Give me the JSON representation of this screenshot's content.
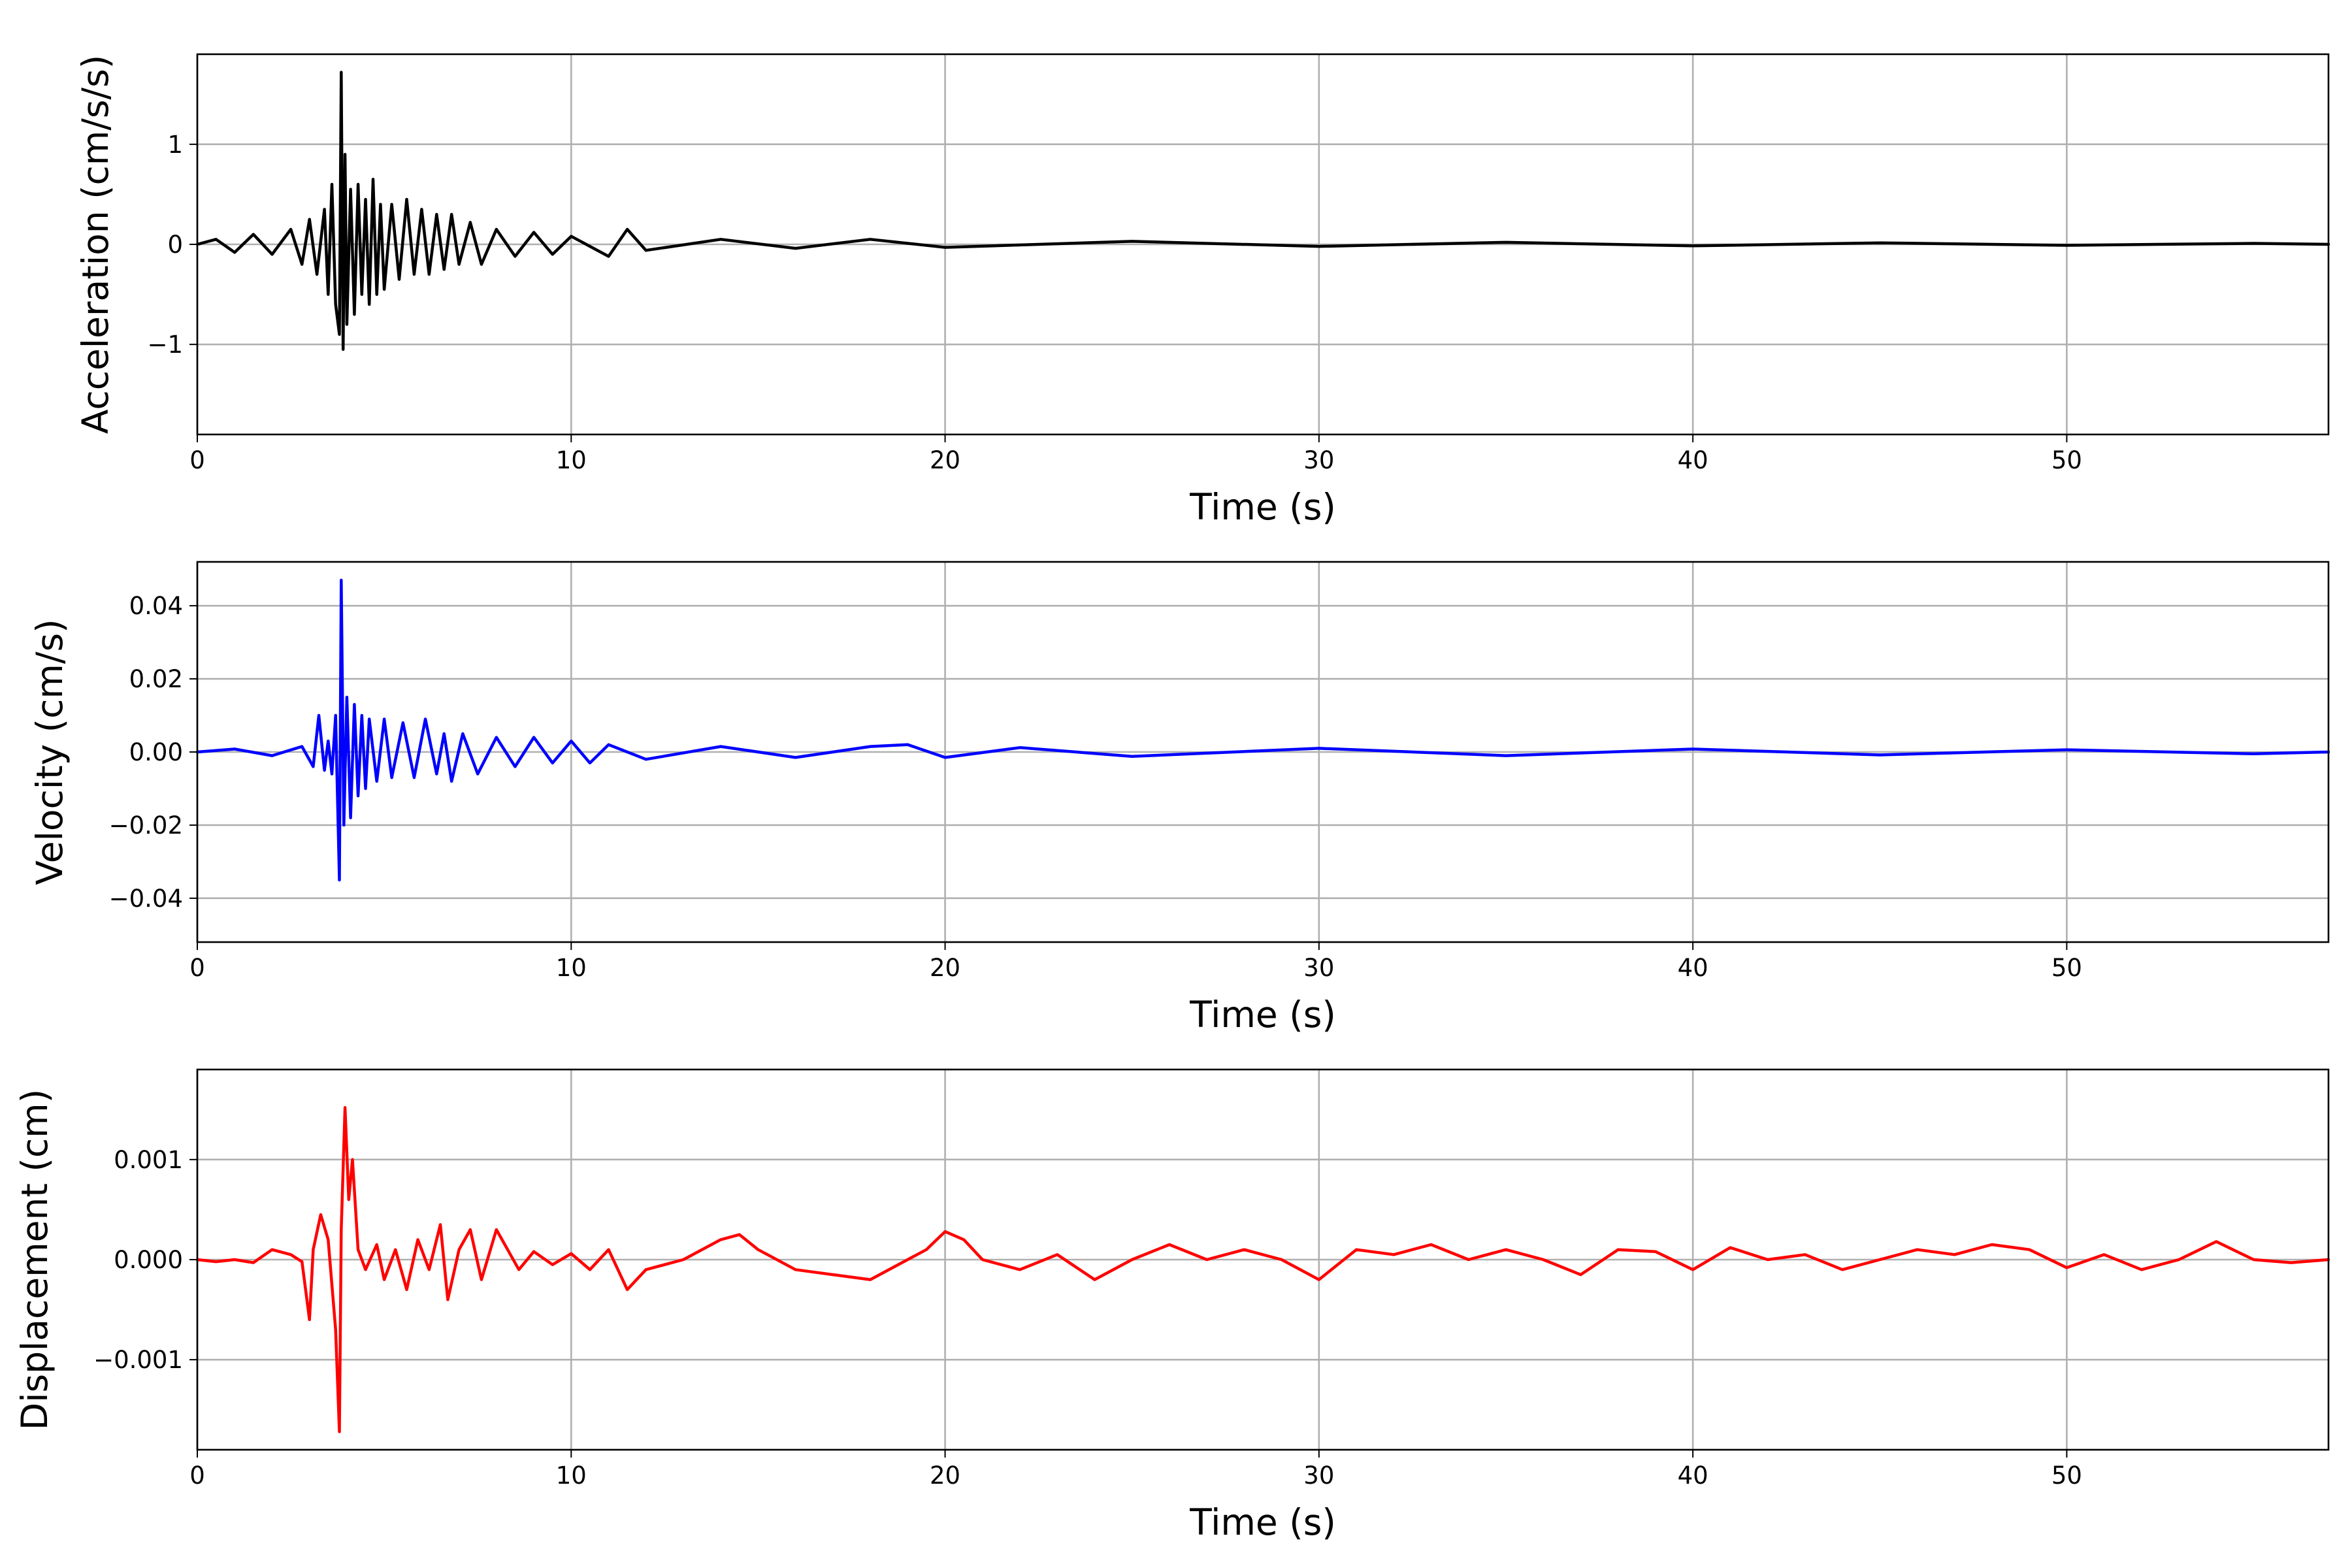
{
  "chart_data": [
    {
      "type": "line",
      "xlabel": "Time (s)",
      "ylabel": "Acceleration (cm/s/s)",
      "xlim": [
        0,
        57
      ],
      "ylim": [
        -1.9,
        1.9
      ],
      "x_ticks": [
        0,
        10,
        20,
        30,
        40,
        50
      ],
      "x_tick_labels": [
        "0",
        "10",
        "20",
        "30",
        "40",
        "50"
      ],
      "y_ticks": [
        -1,
        0,
        1
      ],
      "y_tick_labels": [
        "−1",
        "0",
        "1"
      ],
      "grid": true,
      "color": "#000000",
      "series": [
        {
          "x": [
            0,
            0.5,
            1,
            1.5,
            2,
            2.5,
            2.8,
            3.0,
            3.2,
            3.4,
            3.5,
            3.6,
            3.7,
            3.8,
            3.85,
            3.9,
            3.95,
            4.0,
            4.1,
            4.2,
            4.3,
            4.4,
            4.5,
            4.6,
            4.7,
            4.8,
            4.9,
            5.0,
            5.2,
            5.4,
            5.6,
            5.8,
            6.0,
            6.2,
            6.4,
            6.6,
            6.8,
            7.0,
            7.3,
            7.6,
            8.0,
            8.5,
            9.0,
            9.5,
            10.0,
            11.0,
            11.5,
            12,
            14,
            16,
            18,
            20,
            25,
            30,
            35,
            40,
            45,
            50,
            55,
            57
          ],
          "y": [
            0.0,
            0.05,
            -0.08,
            0.1,
            -0.1,
            0.15,
            -0.2,
            0.25,
            -0.3,
            0.35,
            -0.5,
            0.6,
            -0.6,
            -0.9,
            1.72,
            -1.05,
            0.9,
            -0.8,
            0.55,
            -0.7,
            0.6,
            -0.5,
            0.45,
            -0.6,
            0.65,
            -0.5,
            0.4,
            -0.45,
            0.4,
            -0.35,
            0.45,
            -0.3,
            0.35,
            -0.3,
            0.3,
            -0.25,
            0.3,
            -0.2,
            0.22,
            -0.2,
            0.15,
            -0.12,
            0.12,
            -0.1,
            0.08,
            -0.12,
            0.15,
            -0.06,
            0.05,
            -0.04,
            0.05,
            -0.03,
            0.03,
            -0.02,
            0.02,
            -0.015,
            0.015,
            -0.01,
            0.01,
            0.0
          ]
        }
      ]
    },
    {
      "type": "line",
      "xlabel": "Time (s)",
      "ylabel": "Velocity (cm/s)",
      "xlim": [
        0,
        57
      ],
      "ylim": [
        -0.052,
        0.052
      ],
      "x_ticks": [
        0,
        10,
        20,
        30,
        40,
        50
      ],
      "x_tick_labels": [
        "0",
        "10",
        "20",
        "30",
        "40",
        "50"
      ],
      "y_ticks": [
        -0.04,
        -0.02,
        0.0,
        0.02,
        0.04
      ],
      "y_tick_labels": [
        "−0.04",
        "−0.02",
        "0.00",
        "0.02",
        "0.04"
      ],
      "grid": true,
      "color": "#0000ff",
      "series": [
        {
          "x": [
            0,
            1,
            2,
            2.8,
            3.1,
            3.25,
            3.4,
            3.5,
            3.6,
            3.7,
            3.8,
            3.85,
            3.92,
            4.0,
            4.1,
            4.2,
            4.3,
            4.4,
            4.5,
            4.6,
            4.8,
            5.0,
            5.2,
            5.5,
            5.8,
            6.1,
            6.4,
            6.6,
            6.8,
            7.1,
            7.5,
            8.0,
            8.5,
            9.0,
            9.5,
            10.0,
            10.5,
            11,
            12,
            14,
            16,
            18,
            19,
            20,
            22,
            25,
            30,
            35,
            40,
            45,
            50,
            55,
            57
          ],
          "y": [
            0.0,
            0.0008,
            -0.001,
            0.0015,
            -0.004,
            0.01,
            -0.005,
            0.003,
            -0.006,
            0.01,
            -0.035,
            0.047,
            -0.02,
            0.015,
            -0.018,
            0.013,
            -0.012,
            0.01,
            -0.01,
            0.009,
            -0.008,
            0.009,
            -0.007,
            0.008,
            -0.007,
            0.009,
            -0.006,
            0.005,
            -0.008,
            0.005,
            -0.006,
            0.004,
            -0.004,
            0.004,
            -0.003,
            0.003,
            -0.003,
            0.002,
            -0.002,
            0.0015,
            -0.0015,
            0.0015,
            0.002,
            -0.0015,
            0.0012,
            -0.0012,
            0.001,
            -0.001,
            0.0008,
            -0.0008,
            0.0006,
            -0.0005,
            0.0
          ]
        }
      ]
    },
    {
      "type": "line",
      "xlabel": "Time (s)",
      "ylabel": "Displacement (cm)",
      "xlim": [
        0,
        57
      ],
      "ylim": [
        -0.0019,
        0.0019
      ],
      "x_ticks": [
        0,
        10,
        20,
        30,
        40,
        50
      ],
      "x_tick_labels": [
        "0",
        "10",
        "20",
        "30",
        "40",
        "50"
      ],
      "y_ticks": [
        -0.001,
        0.0,
        0.001
      ],
      "y_tick_labels": [
        "−0.001",
        "0.000",
        "0.001"
      ],
      "grid": true,
      "color": "#ff0000",
      "series": [
        {
          "x": [
            0,
            0.5,
            1,
            1.5,
            2,
            2.5,
            2.8,
            3.0,
            3.1,
            3.3,
            3.5,
            3.7,
            3.8,
            3.85,
            3.95,
            4.05,
            4.15,
            4.3,
            4.5,
            4.8,
            5.0,
            5.3,
            5.6,
            5.9,
            6.2,
            6.5,
            6.7,
            7.0,
            7.3,
            7.6,
            8.0,
            8.3,
            8.6,
            9.0,
            9.5,
            10.0,
            10.5,
            11.0,
            11.5,
            12.0,
            13.0,
            14.0,
            14.5,
            15.0,
            16.0,
            17.0,
            18.0,
            19.0,
            19.5,
            20.0,
            20.5,
            21.0,
            22.0,
            23.0,
            24.0,
            25.0,
            26.0,
            27.0,
            28.0,
            29.0,
            30.0,
            31.0,
            32.0,
            33.0,
            34.0,
            35.0,
            36.0,
            37.0,
            38.0,
            39.0,
            40.0,
            41.0,
            42.0,
            43.0,
            44.0,
            45.0,
            46.0,
            47.0,
            48.0,
            49.0,
            50.0,
            51.0,
            52.0,
            53.0,
            54.0,
            55.0,
            56.0,
            57.0
          ],
          "y": [
            0.0,
            -2e-05,
            0.0,
            -3e-05,
            0.0001,
            5e-05,
            -2e-05,
            -0.0006,
            0.0001,
            0.00045,
            0.0002,
            -0.0007,
            -0.00172,
            0.0003,
            0.00152,
            0.0006,
            0.001,
            0.0001,
            -0.0001,
            0.00015,
            -0.0002,
            0.0001,
            -0.0003,
            0.0002,
            -0.0001,
            0.00035,
            -0.0004,
            0.0001,
            0.0003,
            -0.0002,
            0.0003,
            0.0001,
            -0.0001,
            8e-05,
            -5e-05,
            6e-05,
            -0.0001,
            0.0001,
            -0.0003,
            -0.0001,
            0.0,
            0.0002,
            0.00025,
            0.0001,
            -0.0001,
            -0.00015,
            -0.0002,
            0.0,
            0.0001,
            0.00028,
            0.0002,
            0.0,
            -0.0001,
            5e-05,
            -0.0002,
            0.0,
            0.00015,
            0.0,
            0.0001,
            0.0,
            -0.0002,
            0.0001,
            5e-05,
            0.00015,
            0.0,
            0.0001,
            0.0,
            -0.00015,
            0.0001,
            8e-05,
            -0.0001,
            0.00012,
            0.0,
            5e-05,
            -0.0001,
            0.0,
            0.0001,
            5e-05,
            0.00015,
            0.0001,
            -8e-05,
            5e-05,
            -0.0001,
            0.0,
            0.00018,
            0.0,
            -3e-05,
            0.0
          ]
        }
      ]
    }
  ]
}
